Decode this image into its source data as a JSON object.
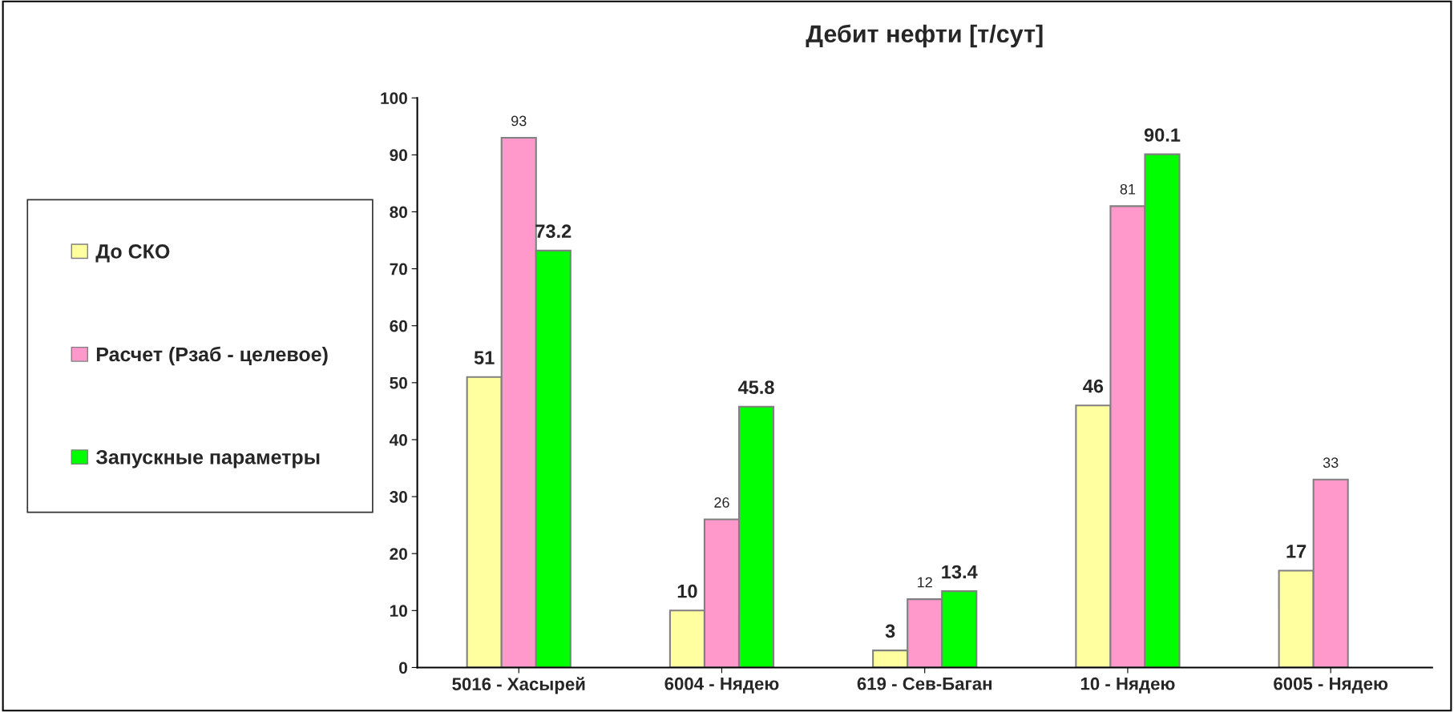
{
  "chart_data": {
    "type": "bar",
    "title": "Дебит нефти [т/сут]",
    "categories": [
      "5016 - Хасырей",
      "6004 - Нядею",
      "619 - Сев-Баган",
      "10 - Нядею",
      "6005 - Нядею"
    ],
    "series": [
      {
        "name": "До СКО",
        "color": "#ffffa0",
        "values": [
          51,
          10,
          3,
          46,
          17
        ]
      },
      {
        "name": "Расчет (Рзаб - целевое)",
        "color": "#ff99cc",
        "values": [
          93,
          26,
          12,
          81,
          33
        ]
      },
      {
        "name": "Запускные параметры",
        "color": "#00ff00",
        "values": [
          73.2,
          45.8,
          13.4,
          90.1,
          null
        ]
      }
    ],
    "ylim": [
      0,
      100
    ],
    "yticks": [
      0,
      10,
      20,
      30,
      40,
      50,
      60,
      70,
      80,
      90,
      100
    ],
    "grid": false,
    "legend": "left",
    "data_labels": true
  }
}
